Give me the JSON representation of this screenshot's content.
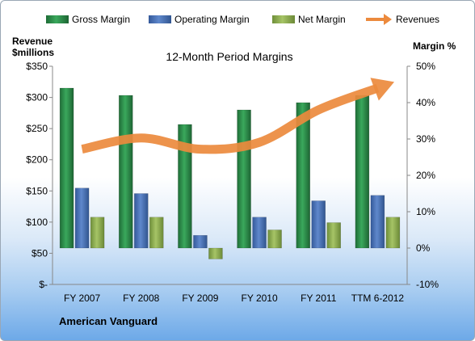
{
  "company": "American Vanguard",
  "chart_data": {
    "type": "bar",
    "title": "12-Month Period Margins",
    "categories": [
      "FY 2007",
      "FY 2008",
      "FY 2009",
      "FY 2010",
      "FY 2011",
      "TTM 6-2012"
    ],
    "left_axis": {
      "label_line1": "Revenue",
      "label_line2": "$millions",
      "range": [
        0,
        350
      ],
      "tick_labels": [
        "$-",
        "$50",
        "$100",
        "$150",
        "$200",
        "$250",
        "$300",
        "$350"
      ]
    },
    "right_axis": {
      "label": "Margin %",
      "range": [
        -10,
        50
      ],
      "tick_labels": [
        "-10%",
        "0%",
        "10%",
        "20%",
        "30%",
        "40%",
        "50%"
      ]
    },
    "series": [
      {
        "name": "Gross Margin",
        "axis": "right",
        "unit": "%",
        "values": [
          44,
          42,
          34,
          38,
          40,
          42
        ],
        "color": "#2e8b4a"
      },
      {
        "name": "Operating Margin",
        "axis": "right",
        "unit": "%",
        "values": [
          16.5,
          15,
          3.5,
          8.5,
          13,
          14.5
        ],
        "color": "#4a74b8"
      },
      {
        "name": "Net Margin",
        "axis": "right",
        "unit": "%",
        "values": [
          8.5,
          8.5,
          -3,
          5,
          7,
          8.5
        ],
        "color": "#8fb152"
      },
      {
        "name": "Revenues",
        "axis": "left",
        "unit": "$millions",
        "values": [
          217,
          235,
          217,
          228,
          280,
          315
        ],
        "color": "#ec8a3d",
        "style": "arrow"
      }
    ],
    "legend_position": "top",
    "grid": false
  }
}
